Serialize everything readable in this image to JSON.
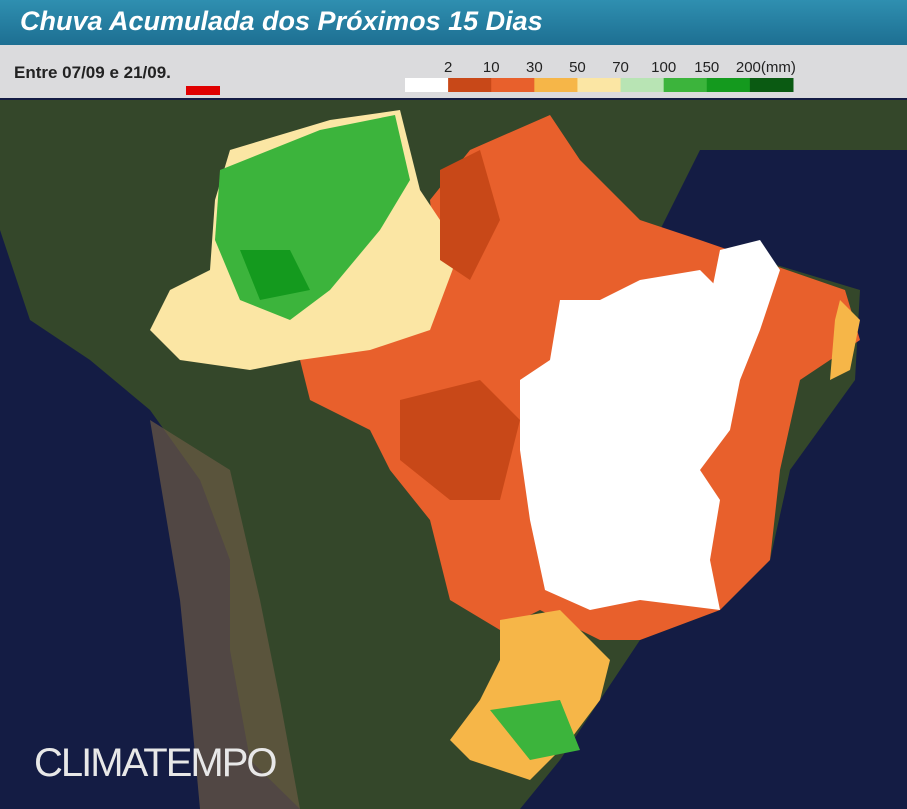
{
  "header": {
    "title": "Chuva Acumulada dos Próximos 15 Dias",
    "subtitle": "Entre 07/09 e 21/09."
  },
  "legend": {
    "labels": [
      "2",
      "10",
      "30",
      "50",
      "70",
      "100",
      "150",
      "200(mm)"
    ],
    "colors": [
      "#ffffff",
      "#c84818",
      "#e8602c",
      "#f6b648",
      "#fbe6a4",
      "#b8e4b4",
      "#3cb43c",
      "#149a1e",
      "#0a5a12"
    ]
  },
  "logo": "CLIMATEMPO"
}
